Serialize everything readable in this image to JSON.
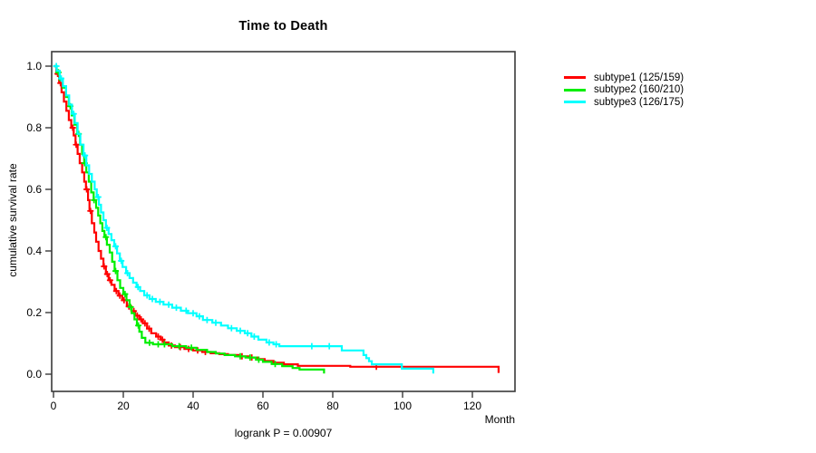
{
  "chart_data": {
    "type": "line",
    "subtype": "kaplan-meier-step-curves",
    "title": "Time to Death",
    "xlabel": "Month",
    "ylabel": "cumulative survival rate",
    "annotation": "logrank P = 0.00907",
    "grid": false,
    "legend_position": "right-outside",
    "xlim": [
      0,
      132
    ],
    "ylim": [
      0.0,
      1.0
    ],
    "xticks": [
      {
        "v": 0,
        "label": "0"
      },
      {
        "v": 20,
        "label": "20"
      },
      {
        "v": 40,
        "label": "40"
      },
      {
        "v": 60,
        "label": "60"
      },
      {
        "v": 80,
        "label": "80"
      },
      {
        "v": 100,
        "label": "100"
      },
      {
        "v": 120,
        "label": "120"
      }
    ],
    "yticks": [
      {
        "v": 0.0,
        "label": "0.0"
      },
      {
        "v": 0.2,
        "label": "0.2"
      },
      {
        "v": 0.4,
        "label": "0.4"
      },
      {
        "v": 0.6,
        "label": "0.6"
      },
      {
        "v": 0.8,
        "label": "0.8"
      },
      {
        "v": 1.0,
        "label": "1.0"
      }
    ],
    "axis_color": "#3a3a3a",
    "series": [
      {
        "name": "subtype1 (125/159)",
        "color": "#ff0000",
        "points": [
          [
            0,
            1.0
          ],
          [
            0.8,
            0.975
          ],
          [
            1.6,
            0.945
          ],
          [
            2.3,
            0.915
          ],
          [
            3.0,
            0.885
          ],
          [
            3.7,
            0.855
          ],
          [
            4.4,
            0.825
          ],
          [
            5.1,
            0.8
          ],
          [
            5.8,
            0.775
          ],
          [
            6.3,
            0.745
          ],
          [
            6.9,
            0.715
          ],
          [
            7.5,
            0.685
          ],
          [
            8.2,
            0.655
          ],
          [
            8.8,
            0.625
          ],
          [
            9.3,
            0.6
          ],
          [
            9.9,
            0.565
          ],
          [
            10.3,
            0.53
          ],
          [
            11.0,
            0.49
          ],
          [
            11.7,
            0.46
          ],
          [
            12.2,
            0.43
          ],
          [
            12.9,
            0.4
          ],
          [
            13.6,
            0.375
          ],
          [
            14.3,
            0.35
          ],
          [
            15.0,
            0.325
          ],
          [
            15.8,
            0.305
          ],
          [
            16.6,
            0.29
          ],
          [
            17.5,
            0.27
          ],
          [
            18.6,
            0.255
          ],
          [
            19.7,
            0.24
          ],
          [
            21.0,
            0.22
          ],
          [
            22.3,
            0.205
          ],
          [
            23.4,
            0.19
          ],
          [
            24.6,
            0.178
          ],
          [
            25.6,
            0.165
          ],
          [
            26.8,
            0.148
          ],
          [
            28.0,
            0.133
          ],
          [
            29.4,
            0.122
          ],
          [
            30.7,
            0.112
          ],
          [
            31.7,
            0.103
          ],
          [
            33.0,
            0.093
          ],
          [
            34.8,
            0.088
          ],
          [
            37.5,
            0.082
          ],
          [
            40.0,
            0.077
          ],
          [
            42.6,
            0.072
          ],
          [
            45.0,
            0.068
          ],
          [
            47.5,
            0.065
          ],
          [
            50.0,
            0.062
          ],
          [
            53.0,
            0.058
          ],
          [
            56.0,
            0.054
          ],
          [
            58.5,
            0.049
          ],
          [
            60.5,
            0.043
          ],
          [
            63.0,
            0.037
          ],
          [
            66.0,
            0.032
          ],
          [
            70.0,
            0.027
          ],
          [
            85.0,
            0.024
          ],
          [
            127.5,
            0.004
          ]
        ],
        "censor_times": [
          1.2,
          2.0,
          5.5,
          6.5,
          9.5,
          10.6,
          14.5,
          15.4,
          16.2,
          18.0,
          19.0,
          20.2,
          21.6,
          23.0,
          24.0,
          25.1,
          26.2,
          27.4,
          30.0,
          31.2,
          33.8,
          36.3,
          38.7,
          41.3,
          43.5,
          54.0,
          56.8,
          92.5
        ]
      },
      {
        "name": "subtype2 (160/210)",
        "color": "#00ee00",
        "points": [
          [
            0,
            1.0
          ],
          [
            0.9,
            0.98
          ],
          [
            1.8,
            0.955
          ],
          [
            2.7,
            0.93
          ],
          [
            3.6,
            0.9
          ],
          [
            4.4,
            0.87
          ],
          [
            5.2,
            0.84
          ],
          [
            6.0,
            0.81
          ],
          [
            6.8,
            0.78
          ],
          [
            7.6,
            0.745
          ],
          [
            8.2,
            0.715
          ],
          [
            8.8,
            0.685
          ],
          [
            9.4,
            0.655
          ],
          [
            10.1,
            0.625
          ],
          [
            10.8,
            0.59
          ],
          [
            11.5,
            0.565
          ],
          [
            12.2,
            0.54
          ],
          [
            12.8,
            0.515
          ],
          [
            13.4,
            0.49
          ],
          [
            14.0,
            0.465
          ],
          [
            14.6,
            0.445
          ],
          [
            15.3,
            0.42
          ],
          [
            16.1,
            0.395
          ],
          [
            16.8,
            0.365
          ],
          [
            17.5,
            0.335
          ],
          [
            18.3,
            0.305
          ],
          [
            19.1,
            0.28
          ],
          [
            20.0,
            0.26
          ],
          [
            20.9,
            0.24
          ],
          [
            21.8,
            0.218
          ],
          [
            22.4,
            0.198
          ],
          [
            23.2,
            0.178
          ],
          [
            23.9,
            0.158
          ],
          [
            24.6,
            0.138
          ],
          [
            25.3,
            0.118
          ],
          [
            26.3,
            0.102
          ],
          [
            28.5,
            0.097
          ],
          [
            34.0,
            0.091
          ],
          [
            38.0,
            0.086
          ],
          [
            41.0,
            0.079
          ],
          [
            44.0,
            0.072
          ],
          [
            46.5,
            0.067
          ],
          [
            49.0,
            0.062
          ],
          [
            52.0,
            0.058
          ],
          [
            55.0,
            0.054
          ],
          [
            58.0,
            0.047
          ],
          [
            60.0,
            0.04
          ],
          [
            62.5,
            0.033
          ],
          [
            65.5,
            0.026
          ],
          [
            68.5,
            0.02
          ],
          [
            70.5,
            0.015
          ],
          [
            77.5,
            0.002
          ]
        ],
        "censor_times": [
          1.4,
          4.8,
          7.2,
          8.9,
          11.6,
          15.0,
          17.8,
          20.5,
          22.1,
          24.3,
          27.5,
          30.0,
          31.8,
          36.0,
          39.5,
          53.5,
          56.3,
          58.8,
          63.5
        ]
      },
      {
        "name": "subtype3 (126/175)",
        "color": "#00ffff",
        "points": [
          [
            0,
            1.0
          ],
          [
            0.9,
            0.985
          ],
          [
            1.8,
            0.96
          ],
          [
            2.7,
            0.935
          ],
          [
            3.6,
            0.905
          ],
          [
            4.5,
            0.875
          ],
          [
            5.3,
            0.845
          ],
          [
            6.1,
            0.815
          ],
          [
            6.9,
            0.78
          ],
          [
            7.7,
            0.745
          ],
          [
            8.6,
            0.71
          ],
          [
            9.4,
            0.678
          ],
          [
            10.2,
            0.65
          ],
          [
            11.0,
            0.625
          ],
          [
            11.8,
            0.6
          ],
          [
            12.4,
            0.575
          ],
          [
            13.0,
            0.55
          ],
          [
            13.6,
            0.525
          ],
          [
            14.3,
            0.5
          ],
          [
            15.0,
            0.475
          ],
          [
            15.8,
            0.455
          ],
          [
            16.6,
            0.435
          ],
          [
            17.4,
            0.415
          ],
          [
            18.2,
            0.392
          ],
          [
            19.0,
            0.368
          ],
          [
            19.8,
            0.348
          ],
          [
            20.8,
            0.328
          ],
          [
            21.8,
            0.312
          ],
          [
            22.8,
            0.297
          ],
          [
            23.8,
            0.283
          ],
          [
            24.8,
            0.27
          ],
          [
            26.0,
            0.256
          ],
          [
            27.5,
            0.244
          ],
          [
            29.3,
            0.235
          ],
          [
            31.5,
            0.226
          ],
          [
            34.0,
            0.216
          ],
          [
            36.5,
            0.206
          ],
          [
            38.5,
            0.198
          ],
          [
            41.0,
            0.188
          ],
          [
            42.8,
            0.176
          ],
          [
            45.5,
            0.167
          ],
          [
            48.0,
            0.158
          ],
          [
            50.0,
            0.149
          ],
          [
            52.5,
            0.141
          ],
          [
            54.8,
            0.133
          ],
          [
            56.7,
            0.122
          ],
          [
            58.7,
            0.112
          ],
          [
            61.0,
            0.103
          ],
          [
            63.0,
            0.097
          ],
          [
            64.7,
            0.091
          ],
          [
            82.6,
            0.077
          ],
          [
            88.8,
            0.062
          ],
          [
            89.6,
            0.052
          ],
          [
            90.4,
            0.042
          ],
          [
            91.2,
            0.032
          ],
          [
            99.8,
            0.018
          ],
          [
            108.8,
            0.002
          ]
        ],
        "censor_times": [
          0.8,
          2.2,
          5.8,
          9.0,
          12.8,
          15.3,
          17.8,
          19.4,
          21.2,
          24.2,
          26.8,
          28.3,
          30.5,
          33.0,
          35.2,
          38.0,
          40.0,
          41.8,
          44.0,
          46.5,
          51.0,
          53.5,
          55.6,
          57.5,
          61.8,
          63.8,
          74.0,
          79.0
        ]
      }
    ]
  }
}
